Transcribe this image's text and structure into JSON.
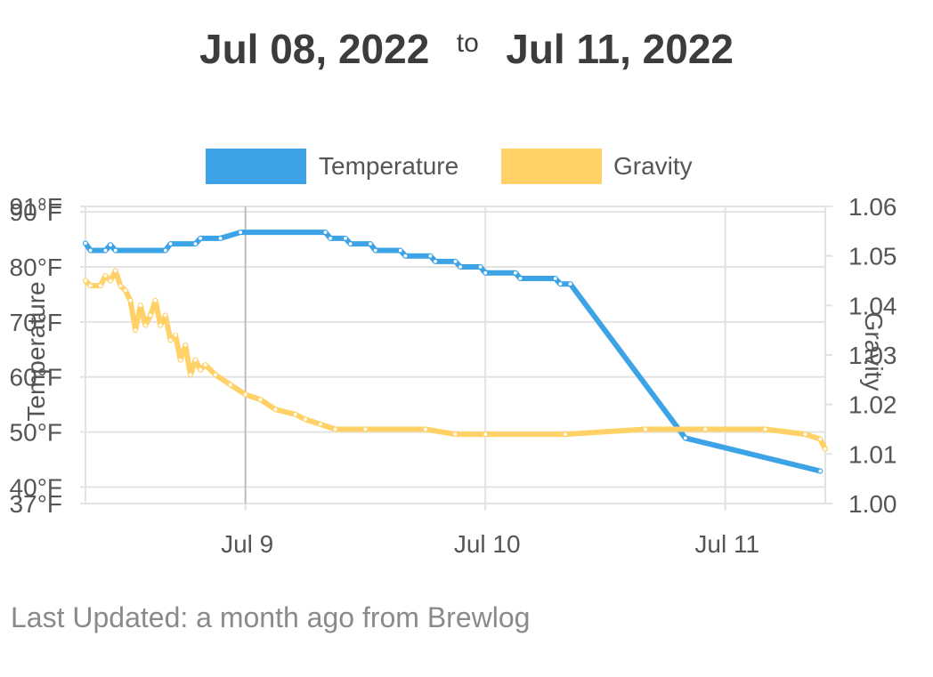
{
  "header": {
    "start_date": "Jul 08, 2022",
    "separator": "to",
    "end_date": "Jul 11, 2022"
  },
  "footer": {
    "text": "Last Updated: a month ago from Brewlog"
  },
  "colors": {
    "temperature": "#3ca3e6",
    "gravity": "#ffd166",
    "grid": "#e3e3e3",
    "gridDark": "#bdbdbd",
    "text": "#555555"
  },
  "chart_data": {
    "type": "line",
    "legend_position": "top",
    "grid": true,
    "x_axis": {
      "range": [
        "2022-07-08T08:00",
        "2022-07-11T10:00"
      ],
      "ticks": [
        {
          "label": "Jul 9",
          "value": "2022-07-09T00:00"
        },
        {
          "label": "Jul 10",
          "value": "2022-07-10T00:00"
        },
        {
          "label": "Jul 11",
          "value": "2022-07-11T00:00"
        }
      ]
    },
    "y_left": {
      "label": "Temperature",
      "range": [
        37,
        91
      ],
      "ticks": [
        {
          "label": "91°F",
          "value": 91
        },
        {
          "label": "90°F",
          "value": 90
        },
        {
          "label": "80°F",
          "value": 80
        },
        {
          "label": "70°F",
          "value": 70
        },
        {
          "label": "60°F",
          "value": 60
        },
        {
          "label": "50°F",
          "value": 50
        },
        {
          "label": "40°F",
          "value": 40
        },
        {
          "label": "37°F",
          "value": 37
        }
      ]
    },
    "y_right": {
      "label": "Gravity",
      "range": [
        1.0,
        1.06
      ],
      "ticks": [
        {
          "label": "1.06",
          "value": 1.06
        },
        {
          "label": "1.05",
          "value": 1.05
        },
        {
          "label": "1.04",
          "value": 1.04
        },
        {
          "label": "1.03",
          "value": 1.03
        },
        {
          "label": "1.02",
          "value": 1.02
        },
        {
          "label": "1.01",
          "value": 1.01
        },
        {
          "label": "1.00",
          "value": 1.0
        }
      ]
    },
    "series": [
      {
        "name": "Temperature",
        "axis": "left",
        "points": [
          [
            "2022-07-08T08:00",
            84.3
          ],
          [
            "2022-07-08T08:30",
            83.0
          ],
          [
            "2022-07-08T10:00",
            83.0
          ],
          [
            "2022-07-08T10:30",
            84.0
          ],
          [
            "2022-07-08T11:00",
            83.0
          ],
          [
            "2022-07-08T16:00",
            83.0
          ],
          [
            "2022-07-08T16:30",
            84.2
          ],
          [
            "2022-07-08T19:00",
            84.2
          ],
          [
            "2022-07-08T19:30",
            85.2
          ],
          [
            "2022-07-08T21:30",
            85.2
          ],
          [
            "2022-07-08T23:30",
            86.3
          ],
          [
            "2022-07-09T08:00",
            86.3
          ],
          [
            "2022-07-09T08:30",
            85.2
          ],
          [
            "2022-07-09T10:00",
            85.2
          ],
          [
            "2022-07-09T10:30",
            84.2
          ],
          [
            "2022-07-09T12:30",
            84.2
          ],
          [
            "2022-07-09T13:00",
            83.0
          ],
          [
            "2022-07-09T15:30",
            83.0
          ],
          [
            "2022-07-09T16:00",
            82.0
          ],
          [
            "2022-07-09T18:30",
            82.0
          ],
          [
            "2022-07-09T19:00",
            81.0
          ],
          [
            "2022-07-09T21:00",
            81.0
          ],
          [
            "2022-07-09T21:30",
            80.0
          ],
          [
            "2022-07-09T23:30",
            80.0
          ],
          [
            "2022-07-10T00:00",
            78.9
          ],
          [
            "2022-07-10T03:00",
            78.9
          ],
          [
            "2022-07-10T03:30",
            77.9
          ],
          [
            "2022-07-10T07:00",
            77.9
          ],
          [
            "2022-07-10T07:30",
            76.9
          ],
          [
            "2022-07-10T08:30",
            76.9
          ],
          [
            "2022-07-10T20:00",
            48.9
          ],
          [
            "2022-07-11T09:30",
            42.9
          ]
        ]
      },
      {
        "name": "Gravity",
        "axis": "right",
        "points": [
          [
            "2022-07-08T08:00",
            1.045
          ],
          [
            "2022-07-08T08:30",
            1.044
          ],
          [
            "2022-07-08T09:30",
            1.044
          ],
          [
            "2022-07-08T10:00",
            1.046
          ],
          [
            "2022-07-08T10:30",
            1.045
          ],
          [
            "2022-07-08T11:00",
            1.047
          ],
          [
            "2022-07-08T11:30",
            1.044
          ],
          [
            "2022-07-08T12:00",
            1.043
          ],
          [
            "2022-07-08T12:30",
            1.041
          ],
          [
            "2022-07-08T13:00",
            1.035
          ],
          [
            "2022-07-08T13:30",
            1.04
          ],
          [
            "2022-07-08T14:00",
            1.036
          ],
          [
            "2022-07-08T14:30",
            1.038
          ],
          [
            "2022-07-08T15:00",
            1.041
          ],
          [
            "2022-07-08T15:30",
            1.036
          ],
          [
            "2022-07-08T16:00",
            1.038
          ],
          [
            "2022-07-08T16:30",
            1.033
          ],
          [
            "2022-07-08T17:00",
            1.034
          ],
          [
            "2022-07-08T17:30",
            1.029
          ],
          [
            "2022-07-08T18:00",
            1.032
          ],
          [
            "2022-07-08T18:30",
            1.026
          ],
          [
            "2022-07-08T19:00",
            1.029
          ],
          [
            "2022-07-08T19:30",
            1.027
          ],
          [
            "2022-07-08T20:00",
            1.028
          ],
          [
            "2022-07-08T21:00",
            1.026
          ],
          [
            "2022-07-08T22:30",
            1.024
          ],
          [
            "2022-07-09T00:00",
            1.022
          ],
          [
            "2022-07-09T01:30",
            1.021
          ],
          [
            "2022-07-09T03:00",
            1.019
          ],
          [
            "2022-07-09T05:00",
            1.018
          ],
          [
            "2022-07-09T06:00",
            1.017
          ],
          [
            "2022-07-09T07:30",
            1.016
          ],
          [
            "2022-07-09T09:00",
            1.015
          ],
          [
            "2022-07-09T12:00",
            1.015
          ],
          [
            "2022-07-09T18:00",
            1.015
          ],
          [
            "2022-07-09T21:00",
            1.014
          ],
          [
            "2022-07-10T00:00",
            1.014
          ],
          [
            "2022-07-10T08:00",
            1.014
          ],
          [
            "2022-07-10T16:00",
            1.015
          ],
          [
            "2022-07-10T22:00",
            1.015
          ],
          [
            "2022-07-11T04:00",
            1.015
          ],
          [
            "2022-07-11T08:00",
            1.014
          ],
          [
            "2022-07-11T09:30",
            1.013
          ],
          [
            "2022-07-11T10:00",
            1.011
          ]
        ]
      }
    ]
  }
}
